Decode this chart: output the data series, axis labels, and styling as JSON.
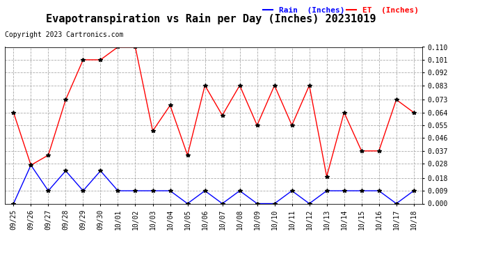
{
  "title": "Evapotranspiration vs Rain per Day (Inches) 20231019",
  "copyright": "Copyright 2023 Cartronics.com",
  "legend_rain": "Rain  (Inches)",
  "legend_et": "ET  (Inches)",
  "x_labels": [
    "09/25",
    "09/26",
    "09/27",
    "09/28",
    "09/29",
    "09/30",
    "10/01",
    "10/02",
    "10/03",
    "10/04",
    "10/05",
    "10/06",
    "10/07",
    "10/08",
    "10/09",
    "10/10",
    "10/11",
    "10/12",
    "10/13",
    "10/14",
    "10/15",
    "10/16",
    "10/17",
    "10/18"
  ],
  "et_values": [
    0.064,
    0.027,
    0.034,
    0.073,
    0.101,
    0.101,
    0.11,
    0.11,
    0.051,
    0.069,
    0.034,
    0.083,
    0.062,
    0.083,
    0.055,
    0.083,
    0.055,
    0.083,
    0.019,
    0.064,
    0.037,
    0.037,
    0.073,
    0.064
  ],
  "rain_values": [
    0.0,
    0.027,
    0.009,
    0.023,
    0.009,
    0.023,
    0.009,
    0.009,
    0.009,
    0.009,
    0.0,
    0.009,
    0.0,
    0.009,
    0.0,
    0.0,
    0.009,
    0.0,
    0.009,
    0.009,
    0.009,
    0.009,
    0.0,
    0.009
  ],
  "ylim": [
    0.0,
    0.11
  ],
  "yticks": [
    0.0,
    0.009,
    0.018,
    0.028,
    0.037,
    0.046,
    0.055,
    0.064,
    0.073,
    0.083,
    0.092,
    0.101,
    0.11
  ],
  "rain_color": "blue",
  "et_color": "red",
  "marker_color": "black",
  "grid_color": "#aaaaaa",
  "bg_color": "white",
  "title_fontsize": 11,
  "label_fontsize": 7,
  "legend_fontsize": 8,
  "copyright_fontsize": 7
}
